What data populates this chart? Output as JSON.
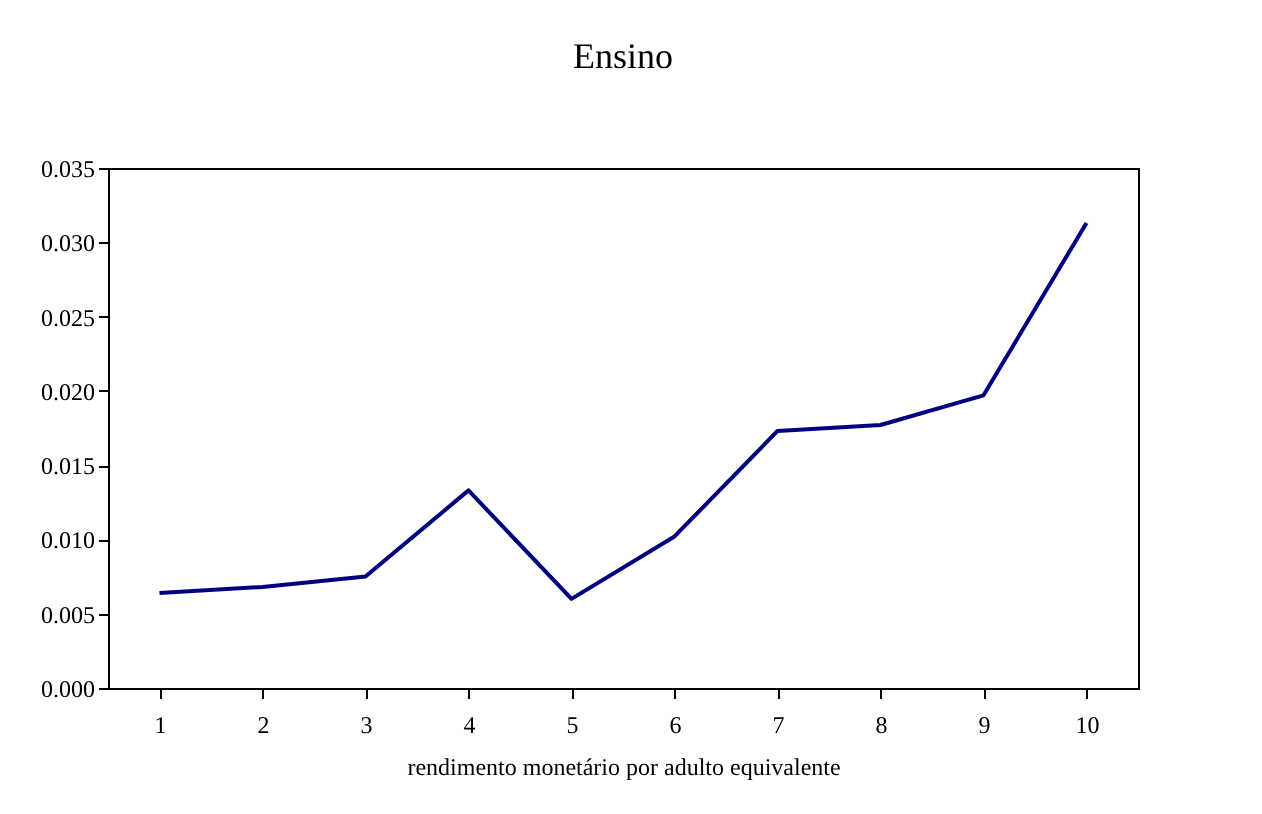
{
  "chart_data": {
    "type": "line",
    "title": "Ensino",
    "xlabel": "rendimento monetário por adulto equivalente",
    "categories": [
      "1",
      "2",
      "3",
      "4",
      "5",
      "6",
      "7",
      "8",
      "9",
      "10"
    ],
    "series": [
      {
        "color": "#000080",
        "values": [
          0.0064,
          0.0068,
          0.0075,
          0.0133,
          0.006,
          0.0102,
          0.0173,
          0.0177,
          0.0197,
          0.0313
        ]
      }
    ],
    "ylim": [
      0,
      0.035
    ],
    "yticks": [
      {
        "value": 0,
        "label": "0.000"
      },
      {
        "value": 0.005,
        "label": "0.005"
      },
      {
        "value": 0.01,
        "label": "0.010"
      },
      {
        "value": 0.015,
        "label": "0.015"
      },
      {
        "value": 0.02,
        "label": "0.020"
      },
      {
        "value": 0.025,
        "label": "0.025"
      },
      {
        "value": 0.03,
        "label": "0.030"
      },
      {
        "value": 0.035,
        "label": "0.035"
      }
    ],
    "grid": false,
    "marker": "none",
    "line_style": "solid"
  }
}
